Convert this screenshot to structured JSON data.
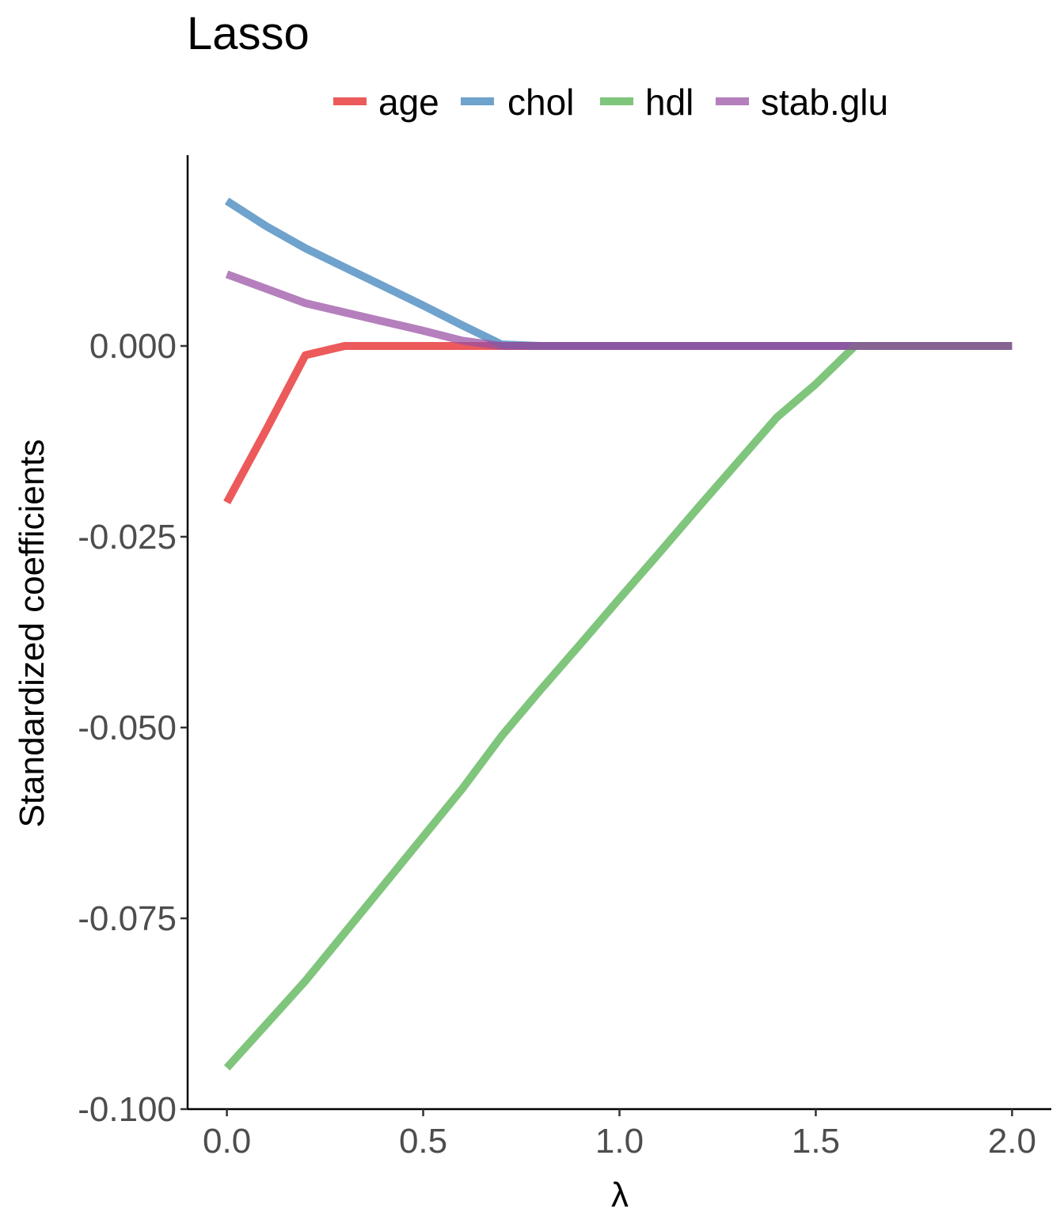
{
  "chart_data": {
    "type": "line",
    "title": "Lasso",
    "xlabel": "λ",
    "ylabel": "Standardized coefficients",
    "xlim": [
      -0.1,
      2.1
    ],
    "ylim": [
      -0.1,
      0.025
    ],
    "x_ticks": [
      0.0,
      0.5,
      1.0,
      1.5,
      2.0
    ],
    "x_tick_labels": [
      "0.0",
      "0.5",
      "1.0",
      "1.5",
      "2.0"
    ],
    "y_ticks": [
      0.0,
      -0.025,
      -0.05,
      -0.075,
      -0.1
    ],
    "y_tick_labels": [
      "0.000",
      "-0.025",
      "-0.050",
      "-0.075",
      "-0.100"
    ],
    "grid": false,
    "legend_position": "top",
    "x": [
      0.0,
      0.1,
      0.2,
      0.3,
      0.4,
      0.5,
      0.6,
      0.7,
      0.8,
      0.9,
      1.0,
      1.1,
      1.2,
      1.3,
      1.4,
      1.5,
      1.6,
      1.7,
      1.8,
      1.9,
      2.0
    ],
    "series": [
      {
        "name": "age",
        "color": "#e41a1c",
        "values": [
          -0.0205,
          -0.011,
          -0.0012,
          0.0,
          0.0,
          0.0,
          0.0,
          0.0,
          0.0,
          0.0,
          0.0,
          0.0,
          0.0,
          0.0,
          0.0,
          0.0,
          0.0,
          0.0,
          0.0,
          0.0,
          0.0
        ]
      },
      {
        "name": "chol",
        "color": "#377eb8",
        "values": [
          0.019,
          0.0157,
          0.0128,
          0.0103,
          0.0078,
          0.0053,
          0.0027,
          0.0002,
          0.0,
          0.0,
          0.0,
          0.0,
          0.0,
          0.0,
          0.0,
          0.0,
          0.0,
          0.0,
          0.0,
          0.0,
          0.0
        ]
      },
      {
        "name": "hdl",
        "color": "#4daf4a",
        "values": [
          -0.0946,
          -0.0889,
          -0.0832,
          -0.0769,
          -0.0706,
          -0.0643,
          -0.058,
          -0.0511,
          -0.045,
          -0.0391,
          -0.0331,
          -0.0272,
          -0.0212,
          -0.0153,
          -0.0094,
          -0.005,
          0.0,
          0.0,
          0.0,
          0.0,
          0.0
        ]
      },
      {
        "name": "stab.glu",
        "color": "#984ea3",
        "values": [
          0.0094,
          0.0075,
          0.0056,
          0.0044,
          0.0032,
          0.002,
          0.0007,
          0.0,
          0.0,
          0.0,
          0.0,
          0.0,
          0.0,
          0.0,
          0.0,
          0.0,
          0.0,
          0.0,
          0.0,
          0.0,
          0.0
        ]
      }
    ]
  }
}
